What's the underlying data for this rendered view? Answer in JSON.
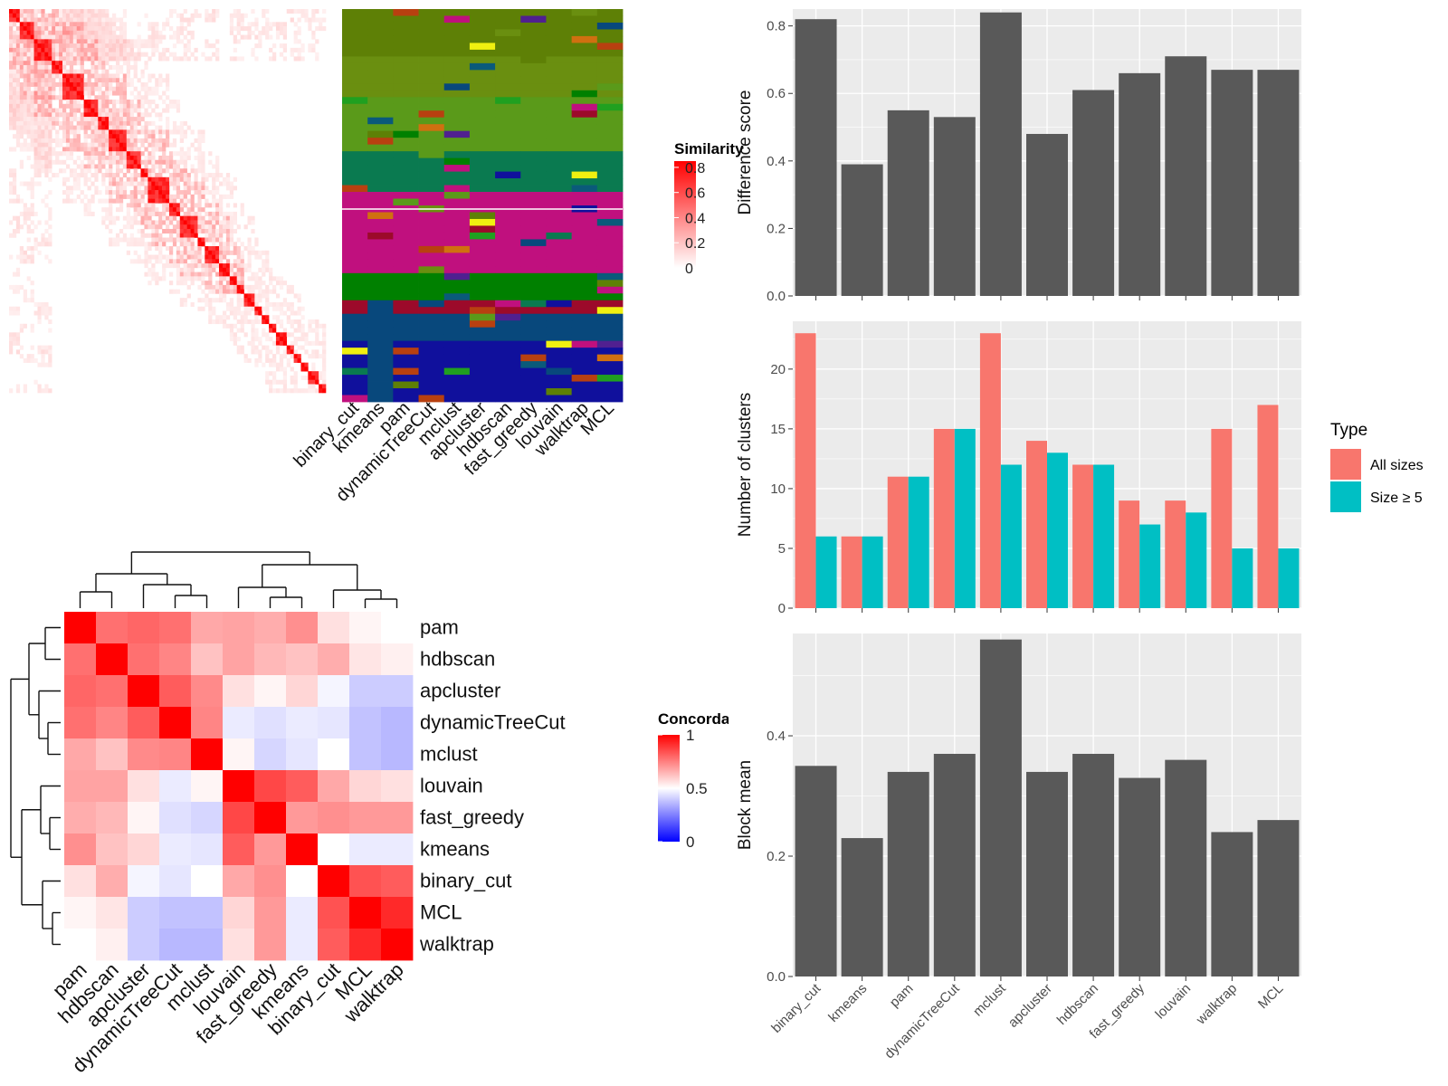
{
  "chart_data": [
    {
      "type": "heatmap",
      "title": "",
      "legend_title": "Similarity",
      "legend_ticks": [
        "0",
        "0.2",
        "0.4",
        "0.6",
        "0.8"
      ],
      "color_low": "#ffffff",
      "color_high": "#ff0000",
      "block_sizes": [
        3,
        4,
        5,
        3,
        6,
        4,
        3,
        5,
        4,
        2,
        6,
        3,
        5,
        2,
        4,
        3,
        2,
        2,
        3,
        2,
        2,
        2,
        3,
        2,
        2,
        2,
        3,
        2
      ]
    },
    {
      "type": "heatmap",
      "title": "",
      "columns": [
        "binary_cut",
        "kmeans",
        "pam",
        "dynamicTreeCut",
        "mclust",
        "apcluster",
        "hdbscan",
        "fast_greedy",
        "louvain",
        "walktrap",
        "MCL"
      ],
      "row_group_colors": [
        "#5e8006",
        "#6a8f10",
        "#5a9a1a",
        "#0a7a50",
        "#c0107e",
        "#c0107e",
        "#008000",
        "#9c0a2a",
        "#08487c",
        "#10109c"
      ]
    },
    {
      "type": "heatmap",
      "title": "",
      "legend_title": "Concordance",
      "legend_ticks": [
        "0",
        "0.5",
        "1"
      ],
      "color_low": "#0000ff",
      "color_mid": "#ffffff",
      "color_high": "#ff0000",
      "labels": [
        "pam",
        "hdbscan",
        "apcluster",
        "dynamicTreeCut",
        "mclust",
        "louvain",
        "fast_greedy",
        "kmeans",
        "binary_cut",
        "MCL",
        "walktrap"
      ],
      "matrix": [
        [
          1.0,
          0.78,
          0.8,
          0.78,
          0.67,
          0.68,
          0.66,
          0.72,
          0.56,
          0.52,
          0.5
        ],
        [
          0.78,
          1.0,
          0.78,
          0.74,
          0.62,
          0.68,
          0.64,
          0.62,
          0.66,
          0.55,
          0.53
        ],
        [
          0.8,
          0.78,
          1.0,
          0.82,
          0.73,
          0.56,
          0.52,
          0.58,
          0.48,
          0.4,
          0.4
        ],
        [
          0.78,
          0.74,
          0.82,
          1.0,
          0.74,
          0.46,
          0.44,
          0.46,
          0.45,
          0.38,
          0.36
        ],
        [
          0.67,
          0.62,
          0.73,
          0.74,
          1.0,
          0.52,
          0.42,
          0.45,
          0.5,
          0.38,
          0.36
        ],
        [
          0.68,
          0.68,
          0.56,
          0.46,
          0.52,
          1.0,
          0.86,
          0.82,
          0.67,
          0.58,
          0.56
        ],
        [
          0.66,
          0.64,
          0.52,
          0.44,
          0.42,
          0.86,
          1.0,
          0.7,
          0.72,
          0.7,
          0.7
        ],
        [
          0.72,
          0.62,
          0.58,
          0.46,
          0.45,
          0.82,
          0.7,
          1.0,
          0.5,
          0.46,
          0.46
        ],
        [
          0.56,
          0.66,
          0.48,
          0.45,
          0.5,
          0.67,
          0.72,
          0.5,
          1.0,
          0.84,
          0.82
        ],
        [
          0.52,
          0.55,
          0.4,
          0.38,
          0.38,
          0.58,
          0.7,
          0.46,
          0.84,
          1.0,
          0.92
        ],
        [
          0.5,
          0.53,
          0.4,
          0.36,
          0.36,
          0.56,
          0.7,
          0.46,
          0.82,
          0.92,
          1.0
        ]
      ]
    },
    {
      "type": "bar",
      "categories": [
        "binary_cut",
        "kmeans",
        "pam",
        "dynamicTreeCut",
        "mclust",
        "apcluster",
        "hdbscan",
        "fast_greedy",
        "louvain",
        "walktrap",
        "MCL"
      ],
      "values": [
        0.82,
        0.39,
        0.55,
        0.53,
        0.84,
        0.48,
        0.61,
        0.66,
        0.71,
        0.67,
        0.67
      ],
      "xlabel": "",
      "ylabel": "Difference score",
      "ylim": [
        0,
        0.85
      ],
      "yticks": [
        "0.0",
        "0.2",
        "0.4",
        "0.6",
        "0.8"
      ],
      "bar_color": "#595959",
      "panel_bg": "#ebebeb",
      "grid": true
    },
    {
      "type": "bar",
      "categories": [
        "binary_cut",
        "kmeans",
        "pam",
        "dynamicTreeCut",
        "mclust",
        "apcluster",
        "hdbscan",
        "fast_greedy",
        "louvain",
        "walktrap",
        "MCL"
      ],
      "series": [
        {
          "name": "All sizes",
          "color": "#f8766d",
          "values": [
            23,
            6,
            11,
            15,
            23,
            14,
            12,
            9,
            9,
            15,
            17
          ]
        },
        {
          "name": "Size ≥ 5",
          "color": "#00bfc4",
          "values": [
            6,
            6,
            11,
            15,
            12,
            13,
            12,
            7,
            8,
            5,
            5
          ]
        }
      ],
      "xlabel": "",
      "ylabel": "Number of clusters",
      "ylim": [
        0,
        24
      ],
      "yticks": [
        "0",
        "5",
        "10",
        "15",
        "20"
      ],
      "legend_title": "Type",
      "legend_position": "right",
      "panel_bg": "#ebebeb",
      "grid": true
    },
    {
      "type": "bar",
      "categories": [
        "binary_cut",
        "kmeans",
        "pam",
        "dynamicTreeCut",
        "mclust",
        "apcluster",
        "hdbscan",
        "fast_greedy",
        "louvain",
        "walktrap",
        "MCL"
      ],
      "values": [
        0.35,
        0.23,
        0.34,
        0.37,
        0.56,
        0.34,
        0.37,
        0.33,
        0.36,
        0.24,
        0.26
      ],
      "xlabel": "",
      "ylabel": "Block mean",
      "ylim": [
        0,
        0.57
      ],
      "yticks": [
        "0.0",
        "0.2",
        "0.4"
      ],
      "bar_color": "#595959",
      "panel_bg": "#ebebeb",
      "grid": true
    }
  ]
}
